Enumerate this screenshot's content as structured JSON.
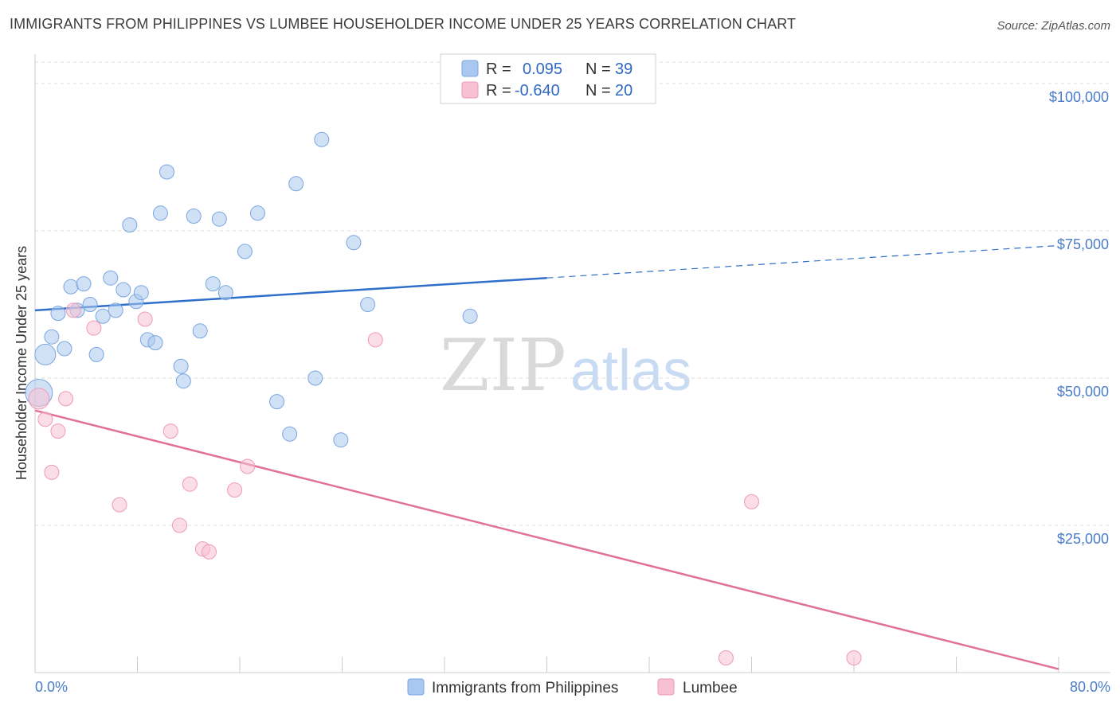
{
  "chart_data": {
    "type": "scatter",
    "title": "IMMIGRANTS FROM PHILIPPINES VS LUMBEE HOUSEHOLDER INCOME UNDER 25 YEARS CORRELATION CHART",
    "source": "Source: ZipAtlas.com",
    "ylabel": "Householder Income Under 25 years",
    "xlim": [
      0,
      80
    ],
    "ylim": [
      0,
      105000
    ],
    "x_tick_labels": [
      "0.0%",
      "80.0%"
    ],
    "y_ticks": [
      {
        "value": 25000,
        "label": "$25,000"
      },
      {
        "value": 50000,
        "label": "$50,000"
      },
      {
        "value": 75000,
        "label": "$75,000"
      },
      {
        "value": 100000,
        "label": "$100,000"
      }
    ],
    "watermark": {
      "zip": "ZIP",
      "atlas": "atlas"
    },
    "legend": {
      "r_label": "R =",
      "n_label": "N =",
      "rows": [
        {
          "r": "0.095",
          "n": "39"
        },
        {
          "r": "-0.640",
          "n": "20"
        }
      ]
    },
    "series": [
      {
        "name": "Immigrants from Philippines",
        "color": "#a9c8ef",
        "stroke": "#7aa6e0",
        "line_color": "#2f6fcb",
        "trend": {
          "x0": 0,
          "y0": 61500,
          "x1": 40,
          "y1": 67000,
          "x_ext": 80,
          "y_ext": 72500
        },
        "points": [
          {
            "x": 0.3,
            "y": 47500,
            "big": 2
          },
          {
            "x": 0.8,
            "y": 54000,
            "big": 1
          },
          {
            "x": 1.3,
            "y": 57000
          },
          {
            "x": 1.8,
            "y": 61000
          },
          {
            "x": 2.3,
            "y": 55000
          },
          {
            "x": 2.8,
            "y": 65500
          },
          {
            "x": 3.3,
            "y": 61500
          },
          {
            "x": 3.8,
            "y": 66000
          },
          {
            "x": 4.3,
            "y": 62500
          },
          {
            "x": 4.8,
            "y": 54000
          },
          {
            "x": 5.3,
            "y": 60500
          },
          {
            "x": 5.9,
            "y": 67000
          },
          {
            "x": 6.3,
            "y": 61500
          },
          {
            "x": 6.9,
            "y": 65000
          },
          {
            "x": 7.4,
            "y": 76000
          },
          {
            "x": 7.9,
            "y": 63000
          },
          {
            "x": 8.3,
            "y": 64500
          },
          {
            "x": 8.8,
            "y": 56500
          },
          {
            "x": 9.4,
            "y": 56000
          },
          {
            "x": 9.8,
            "y": 78000
          },
          {
            "x": 10.3,
            "y": 85000
          },
          {
            "x": 11.4,
            "y": 52000
          },
          {
            "x": 11.6,
            "y": 49500
          },
          {
            "x": 12.4,
            "y": 77500
          },
          {
            "x": 12.9,
            "y": 58000
          },
          {
            "x": 13.9,
            "y": 66000
          },
          {
            "x": 14.4,
            "y": 77000
          },
          {
            "x": 14.9,
            "y": 64500
          },
          {
            "x": 16.4,
            "y": 71500
          },
          {
            "x": 17.4,
            "y": 78000
          },
          {
            "x": 18.9,
            "y": 46000
          },
          {
            "x": 19.9,
            "y": 40500
          },
          {
            "x": 20.4,
            "y": 83000
          },
          {
            "x": 21.9,
            "y": 50000
          },
          {
            "x": 22.4,
            "y": 90500
          },
          {
            "x": 23.9,
            "y": 39500
          },
          {
            "x": 24.9,
            "y": 73000
          },
          {
            "x": 26.0,
            "y": 62500
          },
          {
            "x": 34.0,
            "y": 60500
          }
        ]
      },
      {
        "name": "Lumbee",
        "color": "#f7c1d3",
        "stroke": "#ee9ab6",
        "line_color": "#e0719b",
        "trend": {
          "x0": 0,
          "y0": 44500,
          "x1": 80,
          "y1": 600
        },
        "points": [
          {
            "x": 0.3,
            "y": 46500,
            "big": 1
          },
          {
            "x": 0.8,
            "y": 43000
          },
          {
            "x": 1.3,
            "y": 34000
          },
          {
            "x": 1.8,
            "y": 41000
          },
          {
            "x": 2.4,
            "y": 46500
          },
          {
            "x": 3.0,
            "y": 61500
          },
          {
            "x": 4.6,
            "y": 58500
          },
          {
            "x": 6.6,
            "y": 28500
          },
          {
            "x": 8.6,
            "y": 60000
          },
          {
            "x": 10.6,
            "y": 41000
          },
          {
            "x": 11.3,
            "y": 25000
          },
          {
            "x": 12.1,
            "y": 32000
          },
          {
            "x": 13.1,
            "y": 21000
          },
          {
            "x": 13.6,
            "y": 20500
          },
          {
            "x": 15.6,
            "y": 31000
          },
          {
            "x": 16.6,
            "y": 35000
          },
          {
            "x": 26.6,
            "y": 56500
          },
          {
            "x": 54.0,
            "y": 2500
          },
          {
            "x": 56.0,
            "y": 29000
          },
          {
            "x": 64.0,
            "y": 2500
          }
        ]
      }
    ]
  }
}
